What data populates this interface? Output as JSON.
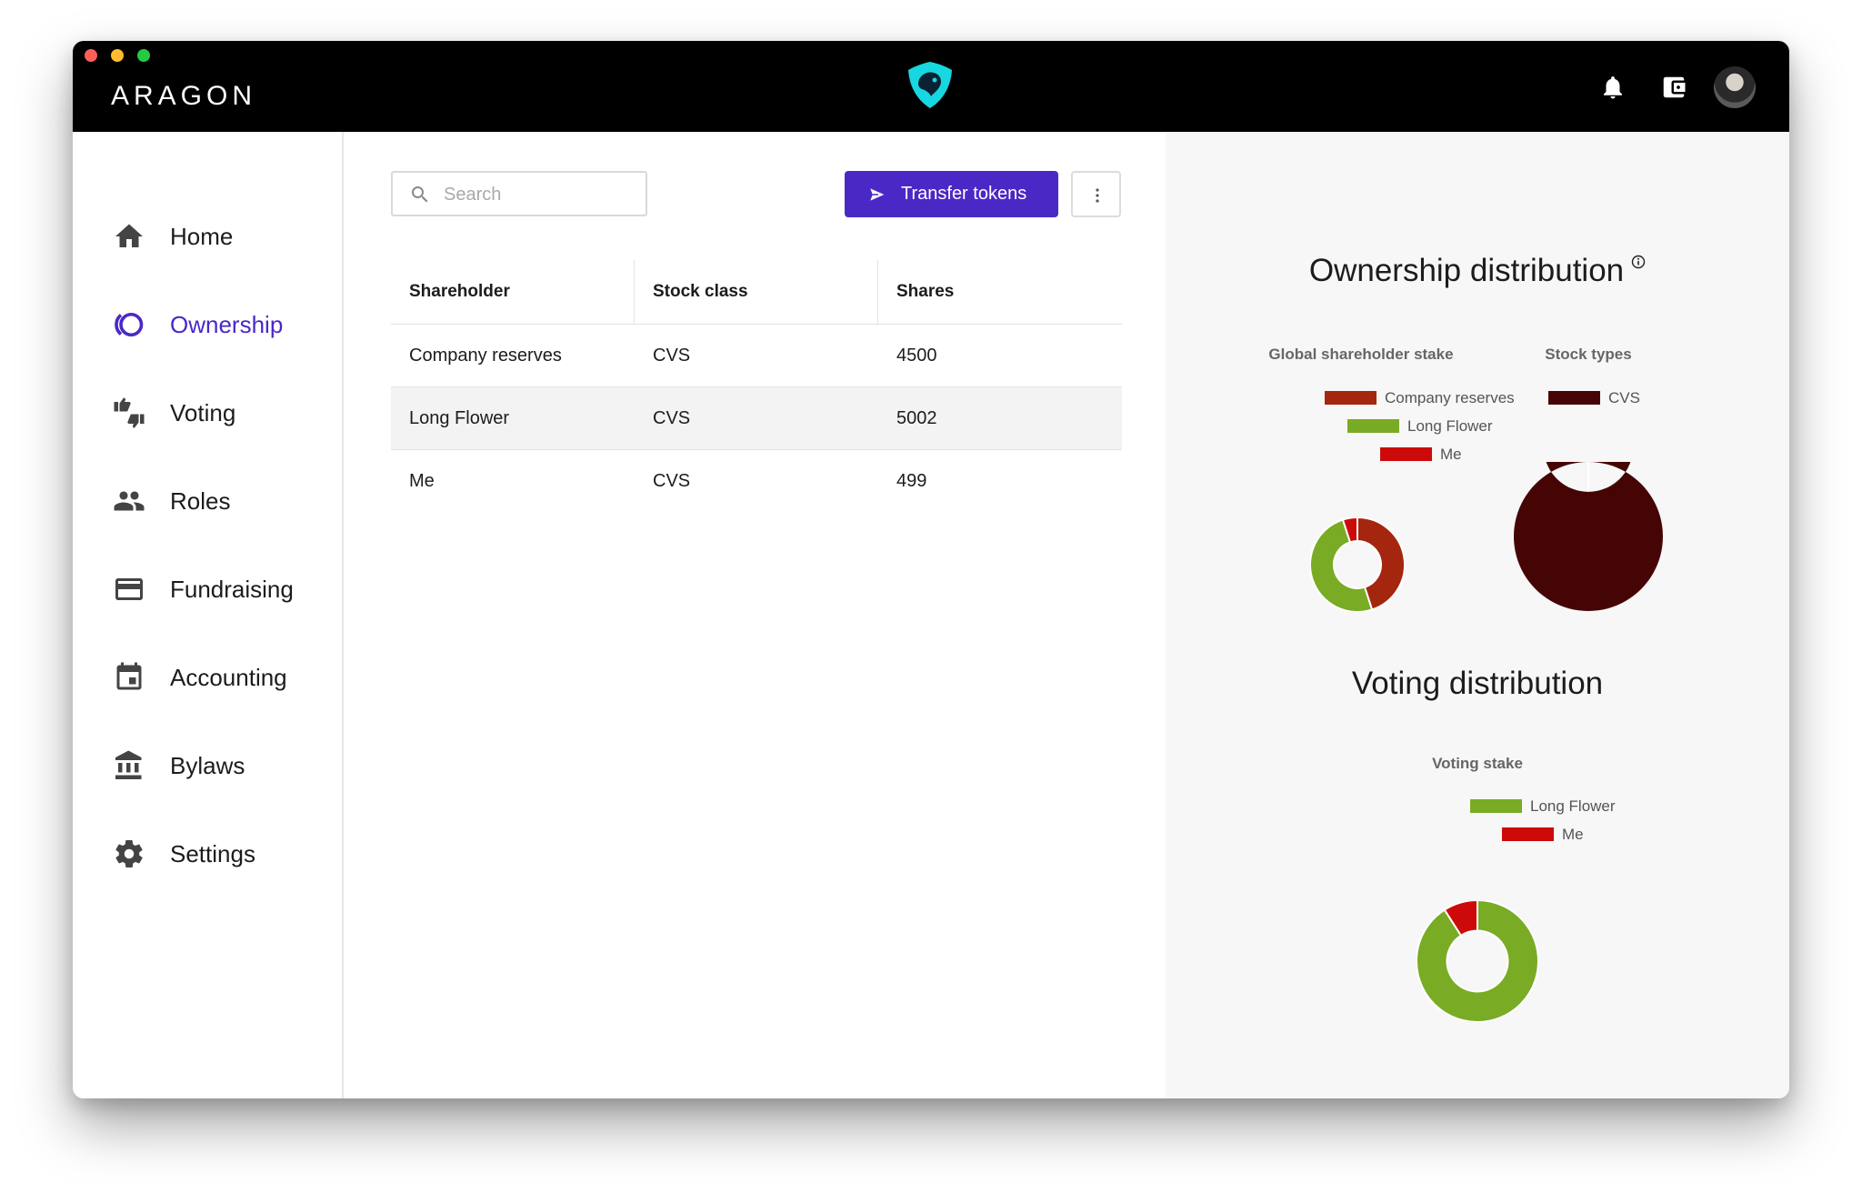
{
  "app": {
    "brand": "ARAGON",
    "icons": [
      "aragon-logo-icon",
      "bell-icon",
      "wallet-icon",
      "avatar"
    ]
  },
  "sidebar": {
    "items": [
      {
        "label": "Home",
        "icon": "home-icon",
        "active": false
      },
      {
        "label": "Ownership",
        "icon": "ownership-icon",
        "active": true
      },
      {
        "label": "Voting",
        "icon": "voting-icon",
        "active": false
      },
      {
        "label": "Roles",
        "icon": "roles-icon",
        "active": false
      },
      {
        "label": "Fundraising",
        "icon": "fundraising-icon",
        "active": false
      },
      {
        "label": "Accounting",
        "icon": "accounting-icon",
        "active": false
      },
      {
        "label": "Bylaws",
        "icon": "bylaws-icon",
        "active": false
      },
      {
        "label": "Settings",
        "icon": "settings-icon",
        "active": false
      }
    ]
  },
  "toolbar": {
    "search_placeholder": "Search",
    "transfer_label": "Transfer tokens"
  },
  "table": {
    "headers": [
      "Shareholder",
      "Stock class",
      "Shares"
    ],
    "rows": [
      [
        "Company reserves",
        "CVS",
        "4500"
      ],
      [
        "Long Flower",
        "CVS",
        "5002"
      ],
      [
        "Me",
        "CVS",
        "499"
      ]
    ]
  },
  "panel": {
    "ownership_title": "Ownership distribution",
    "voting_title": "Voting distribution"
  },
  "colors": {
    "accent": "#4a28c6",
    "company_reserves": "#a4260f",
    "long_flower": "#7aab24",
    "me": "#cc0a0a",
    "cvs": "#460505"
  },
  "chart_data": [
    {
      "type": "pie",
      "title": "Global shareholder stake",
      "categories": [
        "Company reserves",
        "Long Flower",
        "Me"
      ],
      "values": [
        4500,
        5002,
        499
      ],
      "colors": [
        "#a4260f",
        "#7aab24",
        "#cc0a0a"
      ]
    },
    {
      "type": "pie",
      "title": "Stock types",
      "categories": [
        "CVS"
      ],
      "values": [
        10001
      ],
      "colors": [
        "#460505"
      ]
    },
    {
      "type": "pie",
      "title": "Voting stake",
      "categories": [
        "Long Flower",
        "Me"
      ],
      "values": [
        5002,
        499
      ],
      "colors": [
        "#7aab24",
        "#cc0a0a"
      ]
    }
  ]
}
